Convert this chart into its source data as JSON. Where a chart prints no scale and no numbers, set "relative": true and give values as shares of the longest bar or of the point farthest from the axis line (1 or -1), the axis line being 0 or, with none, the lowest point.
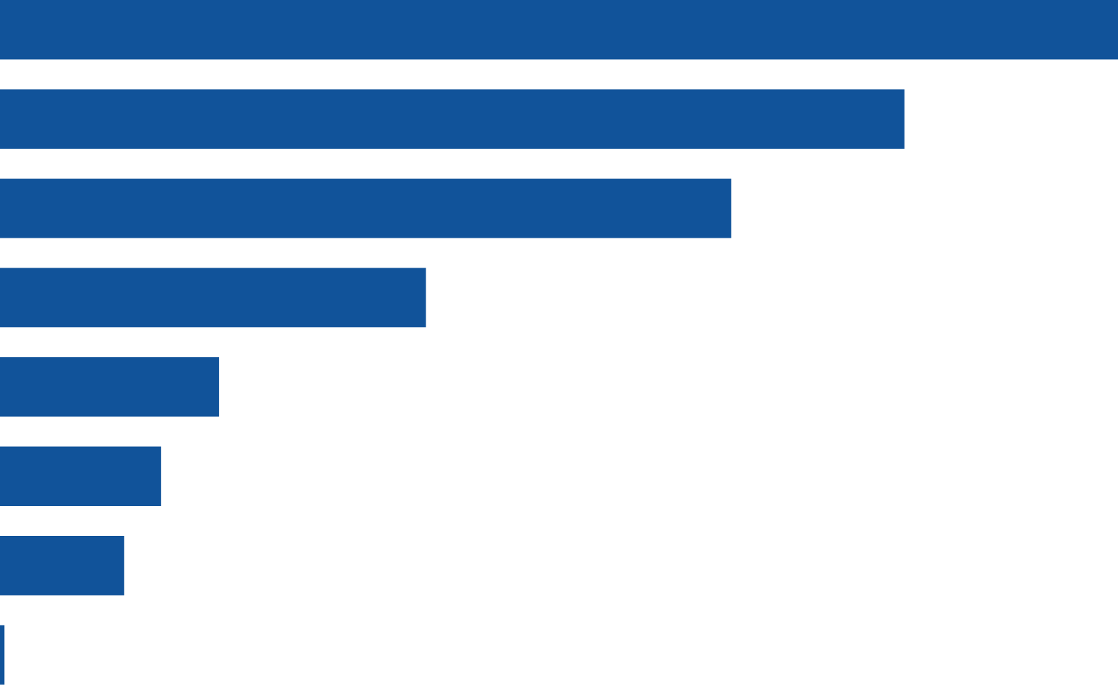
{
  "chart_data": {
    "type": "bar",
    "orientation": "horizontal",
    "relative": true,
    "categories": [
      null,
      null,
      null,
      null,
      null,
      null,
      null,
      null
    ],
    "values": [
      1,
      0.809,
      0.654,
      0.381,
      0.196,
      0.144,
      0.111,
      0.004
    ],
    "color": "#11539a"
  }
}
